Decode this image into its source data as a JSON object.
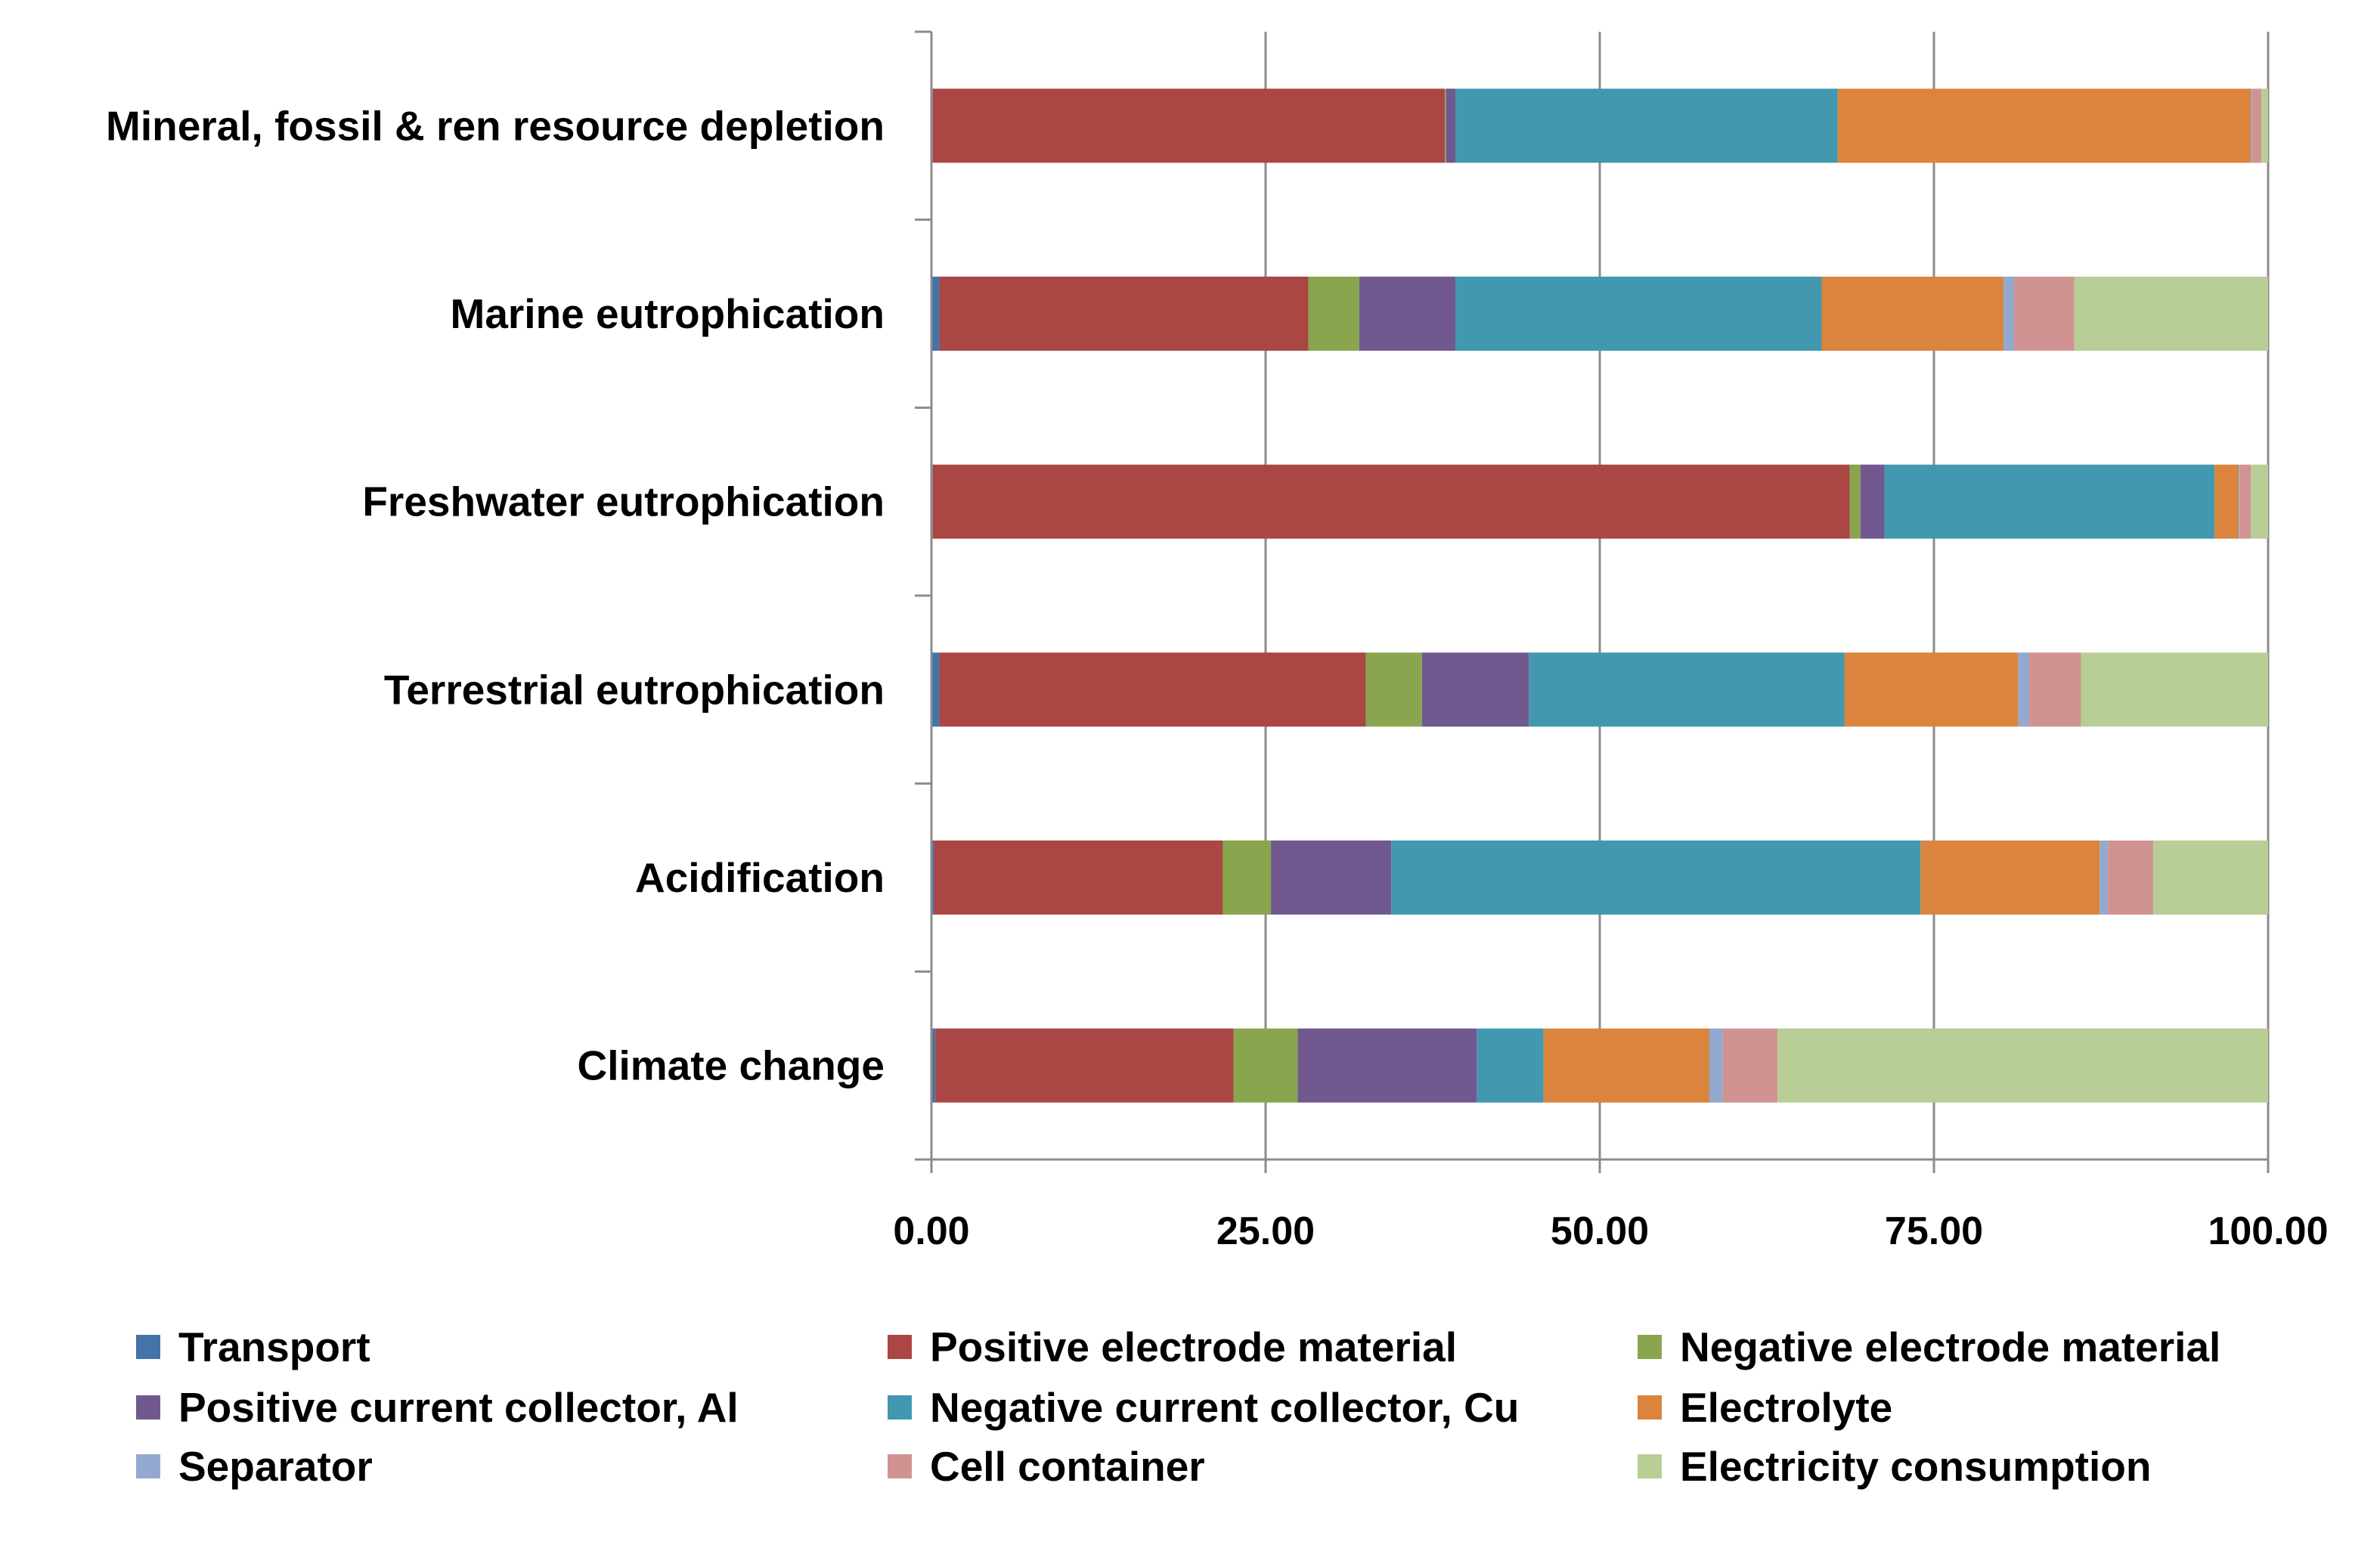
{
  "chart_data": {
    "type": "bar",
    "orientation": "horizontal",
    "stacked": true,
    "xlim": [
      0,
      100
    ],
    "x_ticks": [
      "0.00",
      "25.00",
      "50.00",
      "75.00",
      "100.00"
    ],
    "x_tick_values": [
      0,
      25,
      50,
      75,
      100
    ],
    "grid": "vertical",
    "legend_position": "bottom",
    "categories": [
      "Mineral, fossil & ren resource depletion",
      "Marine eutrophication",
      "Freshwater eutrophication",
      "Terrestrial eutrophication",
      "Acidification",
      "Climate change"
    ],
    "series": [
      {
        "name": "Transport",
        "color": "#4572A7",
        "values": [
          0.1,
          0.6,
          0.1,
          0.6,
          0.2,
          0.3
        ]
      },
      {
        "name": "Positive electrode material",
        "color": "#AA4643",
        "values": [
          38.3,
          27.6,
          68.6,
          31.9,
          21.6,
          22.3
        ]
      },
      {
        "name": "Negative electrode material",
        "color": "#89A54E",
        "values": [
          0.1,
          3.8,
          0.8,
          4.2,
          3.6,
          4.8
        ]
      },
      {
        "name": "Positive current collector, Al",
        "color": "#71588F",
        "values": [
          0.7,
          7.2,
          1.8,
          8.0,
          9.0,
          13.4
        ]
      },
      {
        "name": "Negative current collector, Cu",
        "color": "#4198AF",
        "values": [
          28.6,
          27.4,
          24.7,
          23.6,
          39.6,
          5.0
        ]
      },
      {
        "name": "Electrolyte",
        "color": "#DB843D",
        "values": [
          30.9,
          13.6,
          1.8,
          13.0,
          13.4,
          12.4
        ]
      },
      {
        "name": "Separator",
        "color": "#93A9CF",
        "values": [
          0.1,
          0.8,
          0.1,
          0.8,
          0.6,
          1.0
        ]
      },
      {
        "name": "Cell container",
        "color": "#D19392",
        "values": [
          0.7,
          4.5,
          0.8,
          3.9,
          3.4,
          4.1
        ]
      },
      {
        "name": "Electricity consumption",
        "color": "#B9CD96",
        "values": [
          0.5,
          14.5,
          1.3,
          14.0,
          8.6,
          36.7
        ]
      }
    ]
  }
}
